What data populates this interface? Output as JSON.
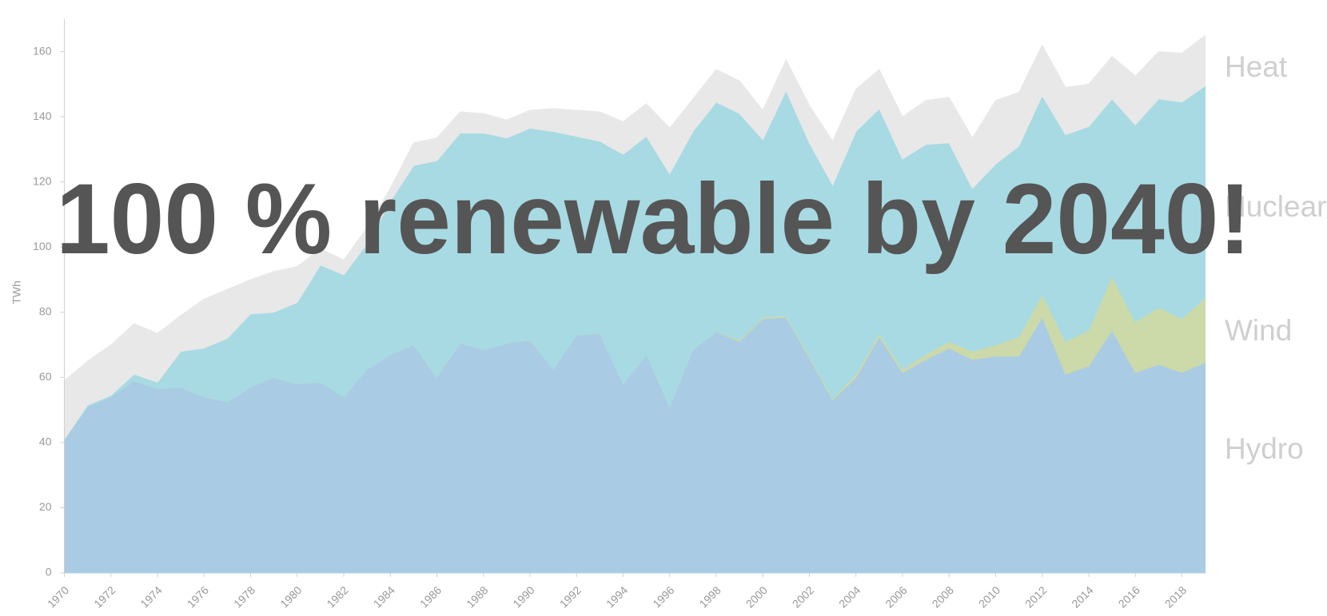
{
  "chart_data": {
    "type": "stacked_area",
    "title": "100 % renewable by 2040!",
    "y_label": "TWh",
    "x": [
      1970,
      1971,
      1972,
      1973,
      1974,
      1975,
      1976,
      1977,
      1978,
      1979,
      1980,
      1981,
      1982,
      1983,
      1984,
      1985,
      1986,
      1987,
      1988,
      1989,
      1990,
      1991,
      1992,
      1993,
      1994,
      1995,
      1996,
      1997,
      1998,
      1999,
      2000,
      2001,
      2002,
      2003,
      2004,
      2005,
      2006,
      2007,
      2008,
      2009,
      2010,
      2011,
      2012,
      2013,
      2014,
      2015,
      2016,
      2017,
      2018,
      2019
    ],
    "xlim": [
      1970,
      2019
    ],
    "xticks": [
      1970,
      1972,
      1974,
      1976,
      1978,
      1980,
      1982,
      1984,
      1986,
      1988,
      1990,
      1992,
      1994,
      1996,
      1998,
      2000,
      2002,
      2004,
      2006,
      2008,
      2010,
      2012,
      2014,
      2016,
      2018
    ],
    "ylim": [
      0,
      170
    ],
    "yticks": [
      0,
      20,
      40,
      60,
      80,
      100,
      120,
      140,
      160
    ],
    "series": [
      {
        "name": "Hydro",
        "color": "#a9cbe4",
        "values": [
          41,
          51,
          54,
          59,
          56.5,
          57,
          54,
          52.5,
          57,
          60,
          58,
          58.5,
          54,
          62.5,
          67,
          70,
          60,
          70.5,
          68.5,
          70.5,
          71.5,
          62.5,
          73,
          73.5,
          58,
          67,
          51,
          68.5,
          74,
          71,
          78,
          78.5,
          66,
          53,
          60,
          72.5,
          61.5,
          65.5,
          69,
          65.5,
          66.5,
          66.5,
          78.5,
          61,
          63.5,
          74.5,
          61.5,
          64,
          61.5,
          64.5
        ]
      },
      {
        "name": "Wind",
        "color": "#ccd9a9",
        "values": [
          0,
          0,
          0,
          0,
          0,
          0,
          0,
          0,
          0,
          0,
          0,
          0,
          0,
          0,
          0,
          0,
          0,
          0,
          0,
          0,
          0,
          0,
          0,
          0,
          0,
          0,
          0,
          0,
          0,
          0.5,
          0.5,
          0.5,
          0.5,
          0.5,
          1,
          1,
          1,
          1.5,
          2,
          2.5,
          3.5,
          6,
          7,
          10,
          11,
          16.5,
          15.5,
          17.5,
          16.5,
          20
        ]
      },
      {
        "name": "Nuclear",
        "color": "#a8dae3",
        "values": [
          0,
          0.5,
          0.5,
          2,
          2,
          11,
          15,
          19.5,
          22.5,
          20,
          25,
          36,
          37.5,
          38.5,
          47,
          55,
          66.5,
          64.5,
          66.5,
          63,
          65,
          73,
          61,
          59,
          70.5,
          67,
          71.5,
          67,
          70.5,
          69.5,
          54.5,
          69,
          65.5,
          65.5,
          74.5,
          69,
          64.5,
          64.5,
          61,
          50,
          55.5,
          58.5,
          61,
          63.5,
          62.5,
          54.5,
          60.5,
          64,
          66.5,
          65
        ]
      },
      {
        "name": "Heat",
        "color": "#e8e8e8",
        "values": [
          18,
          13.5,
          15.5,
          15.5,
          15,
          11,
          15,
          15,
          10.5,
          12.5,
          11,
          5,
          4.5,
          5,
          4,
          7,
          7,
          6.5,
          6,
          5.5,
          5.5,
          7,
          8,
          9,
          10,
          10,
          14,
          10,
          10,
          10,
          9,
          9.5,
          11.5,
          13.5,
          13,
          12,
          13,
          13.5,
          14,
          15.5,
          19.5,
          16.5,
          15.5,
          14.5,
          13,
          13,
          15,
          14.5,
          15,
          15.5
        ]
      }
    ]
  }
}
